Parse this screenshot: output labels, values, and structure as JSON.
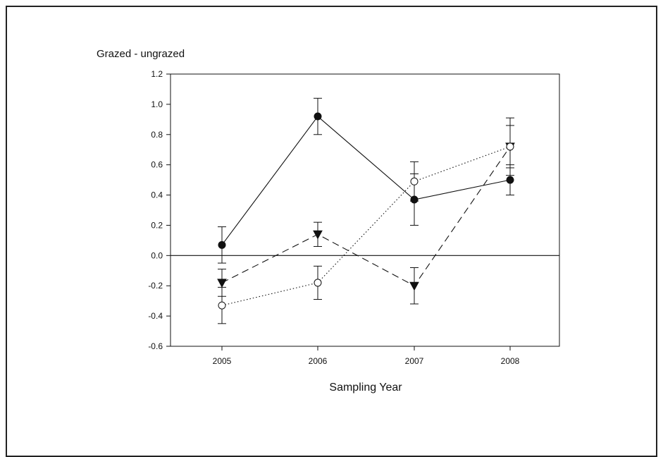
{
  "chart_data": {
    "type": "line",
    "title": "",
    "xlabel": "Sampling Year",
    "ylabel": "Grazed - ungrazed",
    "categories": [
      "2005",
      "2006",
      "2007",
      "2008"
    ],
    "ylim": [
      -0.6,
      1.2
    ],
    "yticks": [
      "1.2",
      "1.0",
      "0.8",
      "0.6",
      "0.4",
      "0.2",
      "0.0",
      "-0.2",
      "-0.4",
      "-0.6"
    ],
    "grid": false,
    "legend": "none",
    "reference_line_y": 0.0,
    "series": [
      {
        "marker": "filled-circle",
        "line_style": "solid",
        "values": [
          0.07,
          0.92,
          0.37,
          0.5
        ],
        "errors": [
          0.12,
          0.12,
          0.17,
          0.1
        ]
      },
      {
        "marker": "filled-triangle-down",
        "line_style": "dashed",
        "values": [
          -0.18,
          0.14,
          -0.2,
          0.72
        ],
        "errors": [
          0.09,
          0.08,
          0.12,
          0.14
        ]
      },
      {
        "marker": "open-circle",
        "line_style": "dotted",
        "values": [
          -0.33,
          -0.18,
          0.49,
          0.72
        ],
        "errors": [
          0.12,
          0.11,
          0.13,
          0.19
        ]
      }
    ],
    "colors": {
      "ink": "#111111",
      "background": "#ffffff"
    }
  }
}
